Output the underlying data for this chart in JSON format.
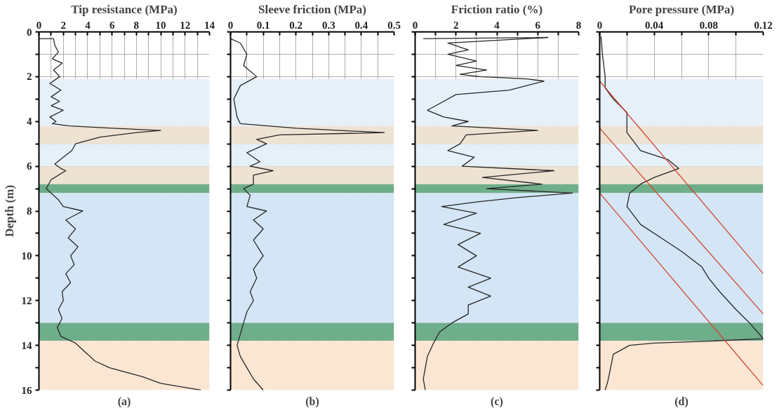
{
  "chart_data": [
    {
      "type": "line",
      "xlabel": "Tip resistance (MPa)",
      "ylabel": "Depth (m)",
      "annotations": [
        "(a)"
      ],
      "xlim": [
        0,
        14
      ],
      "ylim": [
        16,
        0
      ],
      "xticks": [
        0,
        {
          "value": 1,
          "label": null
        },
        2,
        {
          "value": 3,
          "label": null
        },
        4,
        {
          "value": 5,
          "label": null
        },
        6,
        {
          "value": 7,
          "label": null
        },
        8,
        {
          "value": 9,
          "label": null
        },
        10,
        {
          "value": 11,
          "label": null
        },
        12,
        {
          "value": 13,
          "label": null
        },
        14
      ],
      "yticks": [
        0,
        {
          "value": 1,
          "label": null
        },
        2,
        {
          "value": 3,
          "label": null
        },
        4,
        {
          "value": 5,
          "label": null
        },
        6,
        {
          "value": 7,
          "label": null
        },
        8,
        {
          "value": 9,
          "label": null
        },
        10,
        {
          "value": 11,
          "label": null
        },
        12,
        {
          "value": 13,
          "label": null
        },
        14,
        {
          "value": 15,
          "label": null
        },
        16
      ],
      "grid": true,
      "bands": [
        {
          "axis": "y",
          "from": 2.1,
          "to": 4.2,
          "color": "#e6f0f9"
        },
        {
          "axis": "y",
          "from": 4.2,
          "to": 5.0,
          "color": "#eee3d3"
        },
        {
          "axis": "y",
          "from": 5.0,
          "to": 6.0,
          "color": "#e6f0f9"
        },
        {
          "axis": "y",
          "from": 6.0,
          "to": 6.8,
          "color": "#eee3d3"
        },
        {
          "axis": "y",
          "from": 6.8,
          "to": 7.2,
          "color": "#6fae8a"
        },
        {
          "axis": "y",
          "from": 7.2,
          "to": 13.0,
          "color": "#d4e6f5"
        },
        {
          "axis": "y",
          "from": 13.0,
          "to": 13.8,
          "color": "#6fae8a"
        },
        {
          "axis": "y",
          "from": 13.8,
          "to": 16.0,
          "color": "#fbe6d4"
        }
      ],
      "series": [
        {
          "color": "#262626",
          "x": [
            0,
            1.2,
            1.3,
            1.6,
            1.1,
            1.9,
            1.2,
            1.7,
            0.9,
            1.8,
            1.0,
            1.7,
            1.0,
            2.0,
            0.9,
            1.4,
            1.1,
            2.5,
            6,
            10,
            8,
            5,
            3,
            2.7,
            2,
            1.3,
            1.8,
            2.2,
            1.0,
            0.6,
            1.0,
            1.6,
            2.0,
            3.6,
            2.2,
            3.0,
            2.4,
            3.2,
            2.6,
            2.9,
            2.2,
            2.6,
            1.9,
            2.0,
            1.6,
            1.9,
            1.5,
            1.8,
            3.0,
            4.0,
            4.6,
            5.8,
            8.5,
            10,
            13.3
          ],
          "values": [
            0.3,
            0.3,
            0.6,
            0.9,
            1.2,
            1.4,
            1.7,
            2.0,
            2.3,
            2.6,
            2.9,
            3.1,
            3.3,
            3.5,
            3.8,
            4.0,
            4.1,
            4.2,
            4.3,
            4.4,
            4.5,
            4.7,
            5.0,
            5.3,
            5.6,
            5.9,
            6.1,
            6.2,
            6.6,
            7.0,
            7.2,
            7.5,
            7.8,
            8.0,
            8.4,
            8.8,
            9.2,
            9.6,
            10.0,
            10.4,
            10.8,
            11.2,
            11.6,
            12.0,
            12.4,
            12.8,
            13.2,
            13.6,
            13.9,
            14.4,
            14.7,
            15.0,
            15.4,
            15.7,
            16.0
          ]
        }
      ]
    },
    {
      "type": "line",
      "xlabel": "Sleeve friction (MPa)",
      "annotations": [
        "(b)"
      ],
      "xlim": [
        0,
        0.5
      ],
      "ylim": [
        16,
        0
      ],
      "tick_labels": "x",
      "xticks": [
        0,
        {
          "value": 0.05,
          "label": null
        },
        0.1,
        {
          "value": 0.15,
          "label": null
        },
        0.2,
        {
          "value": 0.25,
          "label": null
        },
        0.3,
        {
          "value": 0.35,
          "label": null
        },
        0.4,
        {
          "value": 0.45,
          "label": null
        },
        0.5
      ],
      "yticks": [
        0,
        1,
        2,
        3,
        4,
        5,
        6,
        7,
        8,
        9,
        10,
        11,
        12,
        13,
        14,
        15,
        16
      ],
      "grid": true,
      "bands": [
        {
          "axis": "y",
          "from": 2.1,
          "to": 4.2,
          "color": "#e6f0f9"
        },
        {
          "axis": "y",
          "from": 4.2,
          "to": 5.0,
          "color": "#eee3d3"
        },
        {
          "axis": "y",
          "from": 5.0,
          "to": 6.0,
          "color": "#e6f0f9"
        },
        {
          "axis": "y",
          "from": 6.0,
          "to": 6.8,
          "color": "#eee3d3"
        },
        {
          "axis": "y",
          "from": 6.8,
          "to": 7.2,
          "color": "#6fae8a"
        },
        {
          "axis": "y",
          "from": 7.2,
          "to": 13.0,
          "color": "#d4e6f5"
        },
        {
          "axis": "y",
          "from": 13.0,
          "to": 13.8,
          "color": "#6fae8a"
        },
        {
          "axis": "y",
          "from": 13.8,
          "to": 16.0,
          "color": "#fbe6d4"
        }
      ],
      "series": [
        {
          "color": "#262626",
          "x": [
            0.0,
            0.03,
            0.05,
            0.04,
            0.08,
            0.03,
            0.01,
            0.02,
            0.03,
            0.2,
            0.47,
            0.15,
            0.08,
            0.11,
            0.05,
            0.09,
            0.06,
            0.13,
            0.07,
            0.07,
            0.04,
            0.06,
            0.05,
            0.11,
            0.07,
            0.1,
            0.07,
            0.1,
            0.07,
            0.08,
            0.06,
            0.07,
            0.05,
            0.04,
            0.03,
            0.02,
            0.03,
            0.05,
            0.07,
            0.1
          ],
          "values": [
            0.3,
            0.5,
            1.0,
            1.5,
            2.0,
            2.4,
            3.0,
            3.8,
            4.1,
            4.3,
            4.5,
            4.6,
            4.8,
            5.0,
            5.4,
            5.8,
            6.0,
            6.2,
            6.4,
            6.8,
            7.0,
            7.3,
            7.8,
            8.0,
            8.4,
            8.8,
            9.3,
            10.0,
            10.6,
            11.0,
            11.6,
            12.0,
            12.5,
            13.0,
            13.5,
            14.0,
            14.5,
            15.0,
            15.5,
            16.0
          ]
        }
      ]
    },
    {
      "type": "line",
      "xlabel": "Friction ratio (%)",
      "annotations": [
        "(c)"
      ],
      "xlim": [
        0,
        8
      ],
      "ylim": [
        16,
        0
      ],
      "tick_labels": "x",
      "xticks": [
        0,
        {
          "value": 1,
          "label": null
        },
        2,
        {
          "value": 3,
          "label": null
        },
        4,
        {
          "value": 5,
          "label": null
        },
        6,
        {
          "value": 7,
          "label": null
        },
        8
      ],
      "yticks": [
        0,
        1,
        2,
        3,
        4,
        5,
        6,
        7,
        8,
        9,
        10,
        11,
        12,
        13,
        14,
        15,
        16
      ],
      "grid": true,
      "bands": [
        {
          "axis": "y",
          "from": 2.1,
          "to": 4.2,
          "color": "#e6f0f9"
        },
        {
          "axis": "y",
          "from": 4.2,
          "to": 5.0,
          "color": "#eee3d3"
        },
        {
          "axis": "y",
          "from": 5.0,
          "to": 6.0,
          "color": "#e6f0f9"
        },
        {
          "axis": "y",
          "from": 6.0,
          "to": 6.8,
          "color": "#eee3d3"
        },
        {
          "axis": "y",
          "from": 6.8,
          "to": 7.2,
          "color": "#6fae8a"
        },
        {
          "axis": "y",
          "from": 7.2,
          "to": 13.0,
          "color": "#d4e6f5"
        },
        {
          "axis": "y",
          "from": 13.0,
          "to": 13.8,
          "color": "#6fae8a"
        },
        {
          "axis": "y",
          "from": 13.8,
          "to": 16.0,
          "color": "#fbe6d4"
        }
      ],
      "series": [
        {
          "color": "#262626",
          "x": [
            0.4,
            6.5,
            1.6,
            2.6,
            1.6,
            3.0,
            2.0,
            3.5,
            2.2,
            3.2,
            5.5,
            6.3,
            4.6,
            2.0,
            1.2,
            0.6,
            1.4,
            2.6,
            1.8,
            6.0,
            2.5,
            2.2,
            1.6,
            2.9,
            2.3,
            6.8,
            3.3,
            6.2,
            3.5,
            7.7,
            5.0,
            3.0,
            1.3,
            3.0,
            1.4,
            3.2,
            2.1,
            3.0,
            2.1,
            3.7,
            2.6,
            3.7,
            2.6,
            2.6,
            1.8,
            1.2,
            0.9,
            0.6,
            0.5,
            0.4,
            0.5
          ],
          "values": [
            0.3,
            0.25,
            0.5,
            0.8,
            1.0,
            1.3,
            1.5,
            1.7,
            1.9,
            2.0,
            2.1,
            2.2,
            2.6,
            2.8,
            3.2,
            3.5,
            3.8,
            4.0,
            4.2,
            4.4,
            4.6,
            5.0,
            5.3,
            5.6,
            6.0,
            6.2,
            6.5,
            6.8,
            7.0,
            7.2,
            7.4,
            7.6,
            7.8,
            8.1,
            8.6,
            9.0,
            9.5,
            10.0,
            10.5,
            11.0,
            11.4,
            11.8,
            12.2,
            12.6,
            13.0,
            13.4,
            13.9,
            14.5,
            15.0,
            15.5,
            16.0
          ]
        }
      ]
    },
    {
      "type": "line",
      "xlabel": "Pore pressure (MPa)",
      "annotations": [
        "(d)"
      ],
      "xlim": [
        0,
        0.12
      ],
      "ylim": [
        16,
        0
      ],
      "tick_labels": "x",
      "xticks": [
        0,
        {
          "value": 0.02,
          "label": null
        },
        0.04,
        {
          "value": 0.06,
          "label": null
        },
        0.08,
        {
          "value": 0.1,
          "label": null
        },
        0.12
      ],
      "yticks": [
        0,
        1,
        2,
        3,
        4,
        5,
        6,
        7,
        8,
        9,
        10,
        11,
        12,
        13,
        14,
        15,
        16
      ],
      "grid": true,
      "bands": [
        {
          "axis": "y",
          "from": 2.1,
          "to": 4.2,
          "color": "#e6f0f9"
        },
        {
          "axis": "y",
          "from": 4.2,
          "to": 5.0,
          "color": "#eee3d3"
        },
        {
          "axis": "y",
          "from": 5.0,
          "to": 6.0,
          "color": "#e6f0f9"
        },
        {
          "axis": "y",
          "from": 6.0,
          "to": 6.8,
          "color": "#eee3d3"
        },
        {
          "axis": "y",
          "from": 6.8,
          "to": 7.2,
          "color": "#6fae8a"
        },
        {
          "axis": "y",
          "from": 7.2,
          "to": 13.0,
          "color": "#d4e6f5"
        },
        {
          "axis": "y",
          "from": 13.0,
          "to": 13.8,
          "color": "#6fae8a"
        },
        {
          "axis": "y",
          "from": 13.8,
          "to": 16.0,
          "color": "#fbe6d4"
        }
      ],
      "series": [
        {
          "color": "#262626",
          "x": [
            0.001,
            0.002,
            0.004,
            0.004,
            0.01,
            0.02,
            0.02,
            0.03,
            0.05,
            0.058,
            0.04,
            0.03,
            0.022,
            0.02,
            0.03,
            0.045,
            0.06,
            0.075,
            0.08,
            0.088,
            0.1,
            0.11,
            0.12,
            0.085,
            0.04,
            0.022,
            0.01,
            0.008,
            0.006,
            0.004
          ],
          "values": [
            0.2,
            1.0,
            2.0,
            2.5,
            3.0,
            3.6,
            4.5,
            5.3,
            5.7,
            6.1,
            6.5,
            6.8,
            7.2,
            7.8,
            8.6,
            9.2,
            9.8,
            10.5,
            11.0,
            11.6,
            12.4,
            13.0,
            13.7,
            13.8,
            13.9,
            14.0,
            14.4,
            15.0,
            15.6,
            16.0
          ]
        },
        {
          "color": "#d0462e",
          "x": [
            0,
            0.12
          ],
          "values": [
            2.2,
            10.8
          ]
        },
        {
          "color": "#d0462e",
          "x": [
            0,
            0.12
          ],
          "values": [
            4.3,
            12.6
          ]
        },
        {
          "color": "#d0462e",
          "x": [
            0,
            0.12
          ],
          "values": [
            7.2,
            15.8
          ]
        }
      ]
    }
  ]
}
